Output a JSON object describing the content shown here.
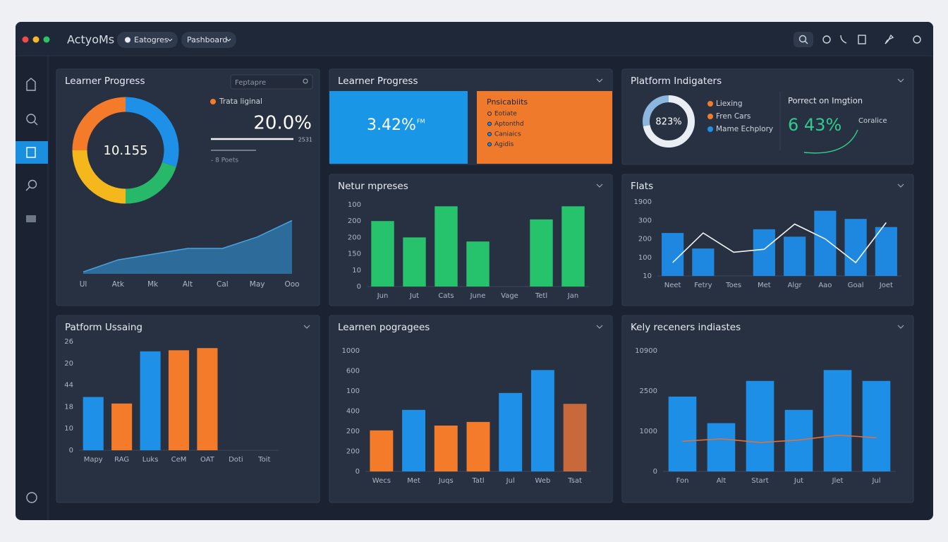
{
  "header": {
    "app_name": "ActyoMs",
    "tabs": [
      "Eatogres",
      "Pashboard"
    ]
  },
  "widgets": {
    "title": "Learner Progress",
    "metric": "3.42%",
    "metric_unit": "FM",
    "metric_color": "#1a96e6",
    "card_title": "Pnsicabiits",
    "card_items": [
      "Eotiate",
      "Aptonthd",
      "Caniaics",
      "Agidis"
    ],
    "card_color": "#f07a2c"
  },
  "chart_data": [
    {
      "type": "donut",
      "title": "Learner Progress",
      "search_placeholder": "Feptapre",
      "center_label": "10.155",
      "values": [
        30,
        20,
        25,
        25
      ],
      "colors": [
        "#1e90e8",
        "#27b86a",
        "#f5b81c",
        "#f47b2a"
      ],
      "legend": [
        {
          "name": "Trata liginal",
          "color": "#f47b2a"
        }
      ],
      "kpi": "20.0%",
      "kpi_note": "2531",
      "footnote": "- 8 Poets"
    },
    {
      "type": "area",
      "categories": [
        "Ul",
        "Atk",
        "Mk",
        "Alt",
        "Cal",
        "May",
        "Ooo"
      ],
      "values": [
        3,
        22,
        31,
        40,
        40,
        58,
        84
      ],
      "ylim": [
        0,
        100
      ],
      "color": "#2f7fb8"
    },
    {
      "type": "donut",
      "title": "Platform Indigaters",
      "center_label": "823%",
      "values": [
        72,
        28
      ],
      "colors": [
        "#e9eef4",
        "#8db6de"
      ],
      "legend": [
        {
          "name": "Liexing",
          "color": "#f47b2a"
        },
        {
          "name": "Fren Cars",
          "color": "#f47b2a"
        },
        {
          "name": "Mame Echplory",
          "color": "#1e90e8"
        }
      ],
      "kpi_title": "Porrect on Imgtion",
      "kpi": "6 43%",
      "kpi_color": "#2ecc8f",
      "kpi_note": "Coralice"
    },
    {
      "type": "bar",
      "title": "Netur mpreses",
      "y_axis_labels": [
        "100",
        "200",
        "200",
        "150",
        "10",
        "0"
      ],
      "categories": [
        "Jun",
        "Jut",
        "Cats",
        "June",
        "Vage",
        "Tetl",
        "Jan"
      ],
      "values": [
        80,
        60,
        98,
        55,
        null,
        82,
        98
      ],
      "ylim": [
        0,
        100
      ],
      "color": "#27c26c"
    },
    {
      "type": "combo",
      "title": "Flats",
      "y_axis_labels": [
        "1900",
        "300",
        "200",
        "100",
        "10"
      ],
      "categories": [
        "Neet",
        "Fetry",
        "Toes",
        "Met",
        "Algr",
        "Aao",
        "Goal",
        "Joet"
      ],
      "ylim": [
        0,
        100
      ],
      "series": [
        {
          "type": "bar",
          "color": "#1e88e0",
          "values": [
            58,
            37,
            null,
            63,
            53,
            88,
            77,
            66
          ]
        },
        {
          "type": "line",
          "color": "#f2f4f8",
          "values": [
            18,
            58,
            32,
            36,
            70,
            50,
            18,
            72
          ]
        }
      ]
    },
    {
      "type": "bar",
      "title": "Patform Ussaing",
      "y_axis_labels": [
        "26",
        "20",
        "44",
        "18",
        "10",
        "0"
      ],
      "categories": [
        "Mapy",
        "RAG",
        "Luks",
        "CeM",
        "OAT",
        "Doti",
        "Toit"
      ],
      "values": [
        49,
        43,
        91,
        92,
        94,
        null,
        null
      ],
      "colors": [
        "#1e90e8",
        "#f47b2a",
        "#1e90e8",
        "#f47b2a",
        "#f47b2a",
        null,
        null
      ],
      "ylim": [
        0,
        100
      ]
    },
    {
      "type": "bar",
      "title": "Learnen pogragees",
      "y_axis_labels": [
        "1000",
        "600",
        "100",
        "400",
        "200",
        "200",
        "0"
      ],
      "categories": [
        "Wecs",
        "Met",
        "Juqs",
        "Tatl",
        "Jul",
        "Web",
        "Tsat"
      ],
      "values": [
        34,
        51,
        38,
        41,
        65,
        84,
        56
      ],
      "colors": [
        "#f47b2a",
        "#1e90e8",
        "#f47b2a",
        "#f47b2a",
        "#1e90e8",
        "#1e90e8",
        "#c8693c"
      ],
      "ylim": [
        0,
        100
      ]
    },
    {
      "type": "combo",
      "title": "Kely receners indiastes",
      "y_axis_labels": [
        "10900",
        "2500",
        "1000",
        "0"
      ],
      "categories": [
        "Fon",
        "Alt",
        "Start",
        "Jut",
        "Jlet",
        "Jul"
      ],
      "ylim": [
        0,
        100
      ],
      "series": [
        {
          "type": "bar",
          "color": "#1e8fe6",
          "values": [
            62,
            40,
            75,
            51,
            84,
            75
          ]
        },
        {
          "type": "line",
          "color": "#e0703a",
          "values": [
            25,
            27,
            24,
            26,
            30,
            28
          ]
        }
      ]
    }
  ]
}
